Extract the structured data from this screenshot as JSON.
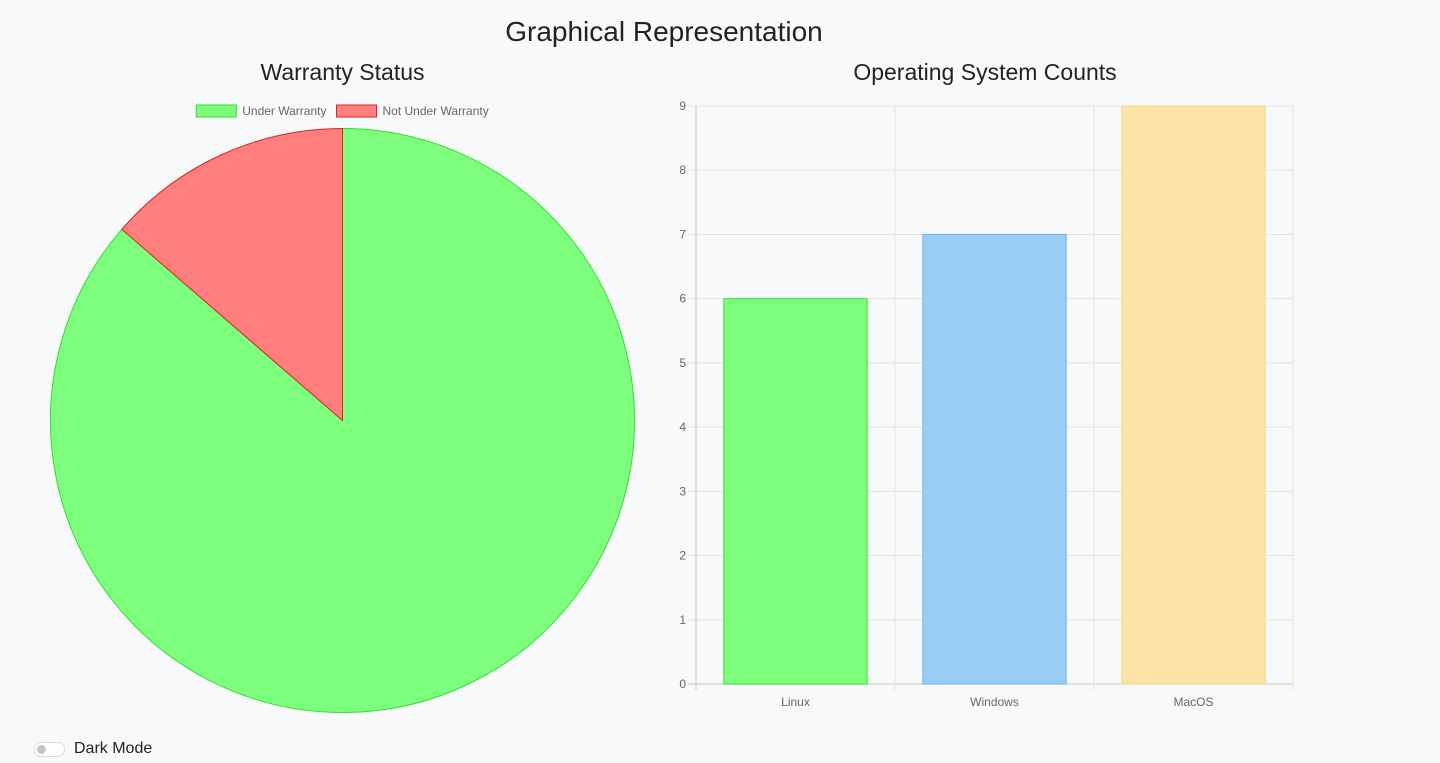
{
  "page": {
    "title": "Graphical Representation"
  },
  "controls": {
    "dark_mode_label": "Dark Mode",
    "dark_mode_on": false
  },
  "chart_data": [
    {
      "type": "pie",
      "title": "Warranty Status",
      "labels": [
        "Under Warranty",
        "Not Under Warranty"
      ],
      "values": [
        19,
        3
      ],
      "colors": [
        "#7dff7d",
        "#ff7f7f"
      ],
      "border_colors": [
        "#33dd33",
        "#dd2222"
      ],
      "legend": "top"
    },
    {
      "type": "bar",
      "title": "Operating System Counts",
      "categories": [
        "Linux",
        "Windows",
        "MacOS"
      ],
      "values": [
        6,
        7,
        9
      ],
      "colors": [
        "#7dff7d",
        "#99cdf3",
        "#fce3a6"
      ],
      "border_colors": [
        "#33dd33",
        "#6bb2e8",
        "#f5d48a"
      ],
      "ylim": [
        0,
        9
      ],
      "yticks": [
        0,
        1,
        2,
        3,
        4,
        5,
        6,
        7,
        8,
        9
      ],
      "grid": true,
      "legend": "none"
    }
  ]
}
